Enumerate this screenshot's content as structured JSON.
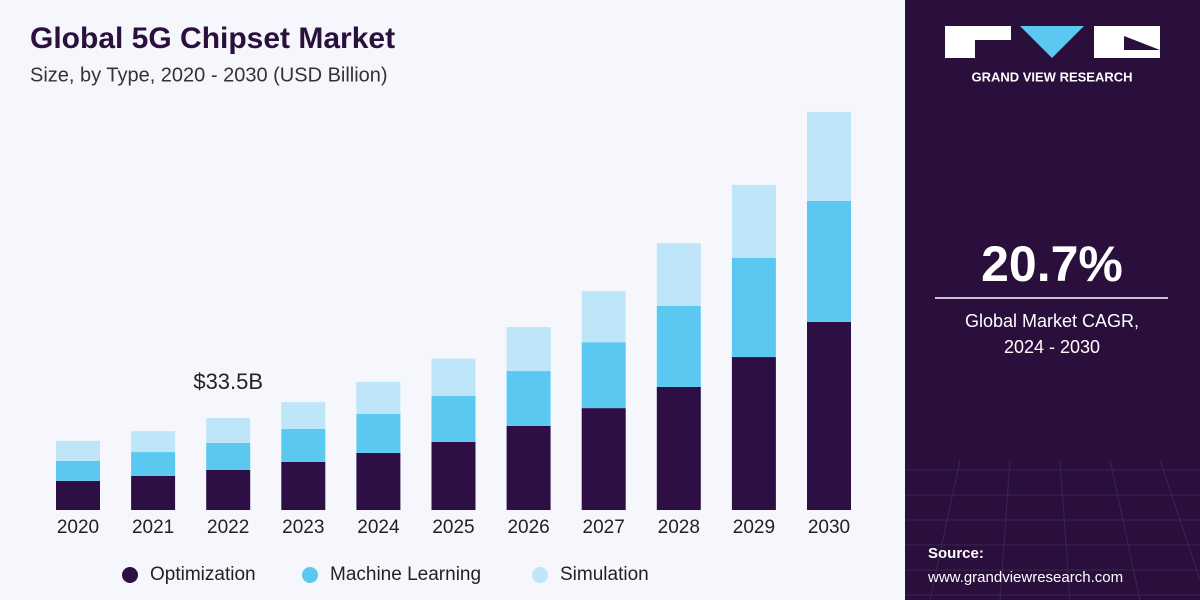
{
  "chart_data": {
    "type": "stacked_bar",
    "title": "Global 5G Chipset Market",
    "subtitle": "Size, by Type, 2020 - 2030 (USD Billion)",
    "categories": [
      "2020",
      "2021",
      "2022",
      "2023",
      "2024",
      "2025",
      "2026",
      "2027",
      "2028",
      "2029",
      "2030"
    ],
    "series": [
      {
        "name": "Optimization",
        "color": "#2e0f45",
        "values": [
          10.6,
          12.4,
          14.6,
          17.5,
          20.8,
          24.8,
          30.6,
          37.1,
          44.8,
          55.7,
          68.5
        ]
      },
      {
        "name": "Machine Learning",
        "color": "#5bc8f2",
        "values": [
          7.3,
          8.7,
          9.8,
          12.0,
          14.2,
          16.8,
          20.0,
          24.0,
          29.5,
          36.1,
          44.1
        ]
      },
      {
        "name": "Simulation",
        "color": "#bfe6f8",
        "values": [
          7.3,
          7.6,
          9.1,
          9.8,
          11.7,
          13.5,
          16.0,
          18.6,
          22.9,
          26.6,
          32.4
        ]
      }
    ],
    "annotations": [
      {
        "x": "2022",
        "value": 33.5,
        "label": "$33.5B"
      }
    ],
    "brand": "GRAND VIEW RESEARCH",
    "cagr": "20.7%",
    "cagr_caption": [
      "Global Market CAGR,",
      "2024 - 2030"
    ],
    "source_label": "Source:",
    "source_url": "www.grandviewresearch.com"
  }
}
